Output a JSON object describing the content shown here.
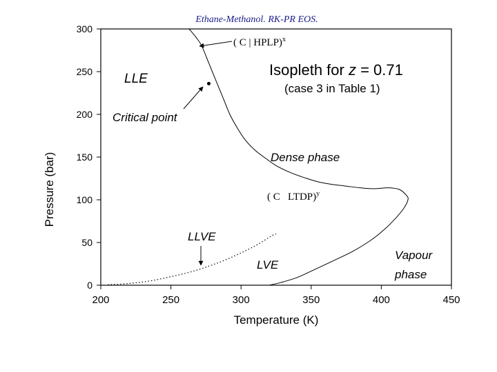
{
  "header": {
    "title": "Ethane-Methanol. RK-PR EOS."
  },
  "chart_data": {
    "type": "line",
    "title": "Ethane-Methanol. RK-PR EOS.",
    "xlabel": "Temperature (K)",
    "ylabel": "Pressure (bar)",
    "xlim": [
      200,
      450
    ],
    "ylim": [
      0,
      300
    ],
    "x_ticks": [
      200,
      250,
      300,
      350,
      400,
      450
    ],
    "y_ticks": [
      0,
      50,
      100,
      150,
      200,
      250,
      300
    ],
    "grid": false,
    "annotations": {
      "heading_line1": "Isopleth for z = 0.71",
      "heading_var": "z",
      "heading_value": "= 0.71",
      "heading_prefix": "Isopleth for",
      "heading_line2": "(case 3 in Table 1)",
      "lle": "LLE",
      "critical_point": "Critical point",
      "dense_phase": "Dense phase",
      "llve": "LLVE",
      "lve": "LVE",
      "vapour_1": "Vapour",
      "vapour_2": "phase",
      "hplp": "( C | HPLP)",
      "hplp_sup": "x",
      "ltdp": "( C   LTDP)",
      "ltdp_sup": "y"
    },
    "series": [
      {
        "style": "solid",
        "points": [
          [
            263,
            300
          ],
          [
            268,
            290
          ],
          [
            272,
            280
          ],
          [
            277,
            260
          ],
          [
            282,
            240
          ],
          [
            287,
            220
          ],
          [
            292,
            200
          ],
          [
            297,
            185
          ],
          [
            303,
            170
          ],
          [
            310,
            158
          ],
          [
            318,
            148
          ],
          [
            325,
            140
          ],
          [
            335,
            132
          ],
          [
            345,
            126
          ],
          [
            355,
            121
          ],
          [
            365,
            118
          ],
          [
            375,
            116
          ],
          [
            385,
            114
          ],
          [
            395,
            113
          ],
          [
            405,
            114
          ],
          [
            413,
            112
          ],
          [
            418,
            105
          ],
          [
            419,
            100
          ],
          [
            416,
            90
          ],
          [
            410,
            78
          ],
          [
            402,
            65
          ],
          [
            392,
            52
          ],
          [
            380,
            40
          ],
          [
            365,
            28
          ],
          [
            352,
            18
          ],
          [
            340,
            9
          ],
          [
            328,
            3
          ],
          [
            320,
            0
          ]
        ]
      },
      {
        "style": "dotted",
        "points": [
          [
            205,
            0.5
          ],
          [
            220,
            2
          ],
          [
            235,
            5
          ],
          [
            250,
            10
          ],
          [
            265,
            16
          ],
          [
            280,
            24
          ],
          [
            295,
            34
          ],
          [
            310,
            46
          ],
          [
            322,
            58
          ],
          [
            325,
            60
          ]
        ]
      }
    ],
    "points": [
      {
        "name": "critical-point",
        "x": 277,
        "y": 236
      }
    ]
  }
}
